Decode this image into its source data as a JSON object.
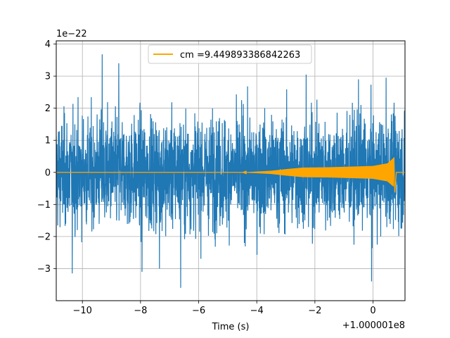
{
  "chart_data": {
    "type": "line",
    "xlabel": "Time (s)",
    "ylabel": "",
    "x_offset_label": "+1.000001e8",
    "y_scale_label": "1e−22",
    "xlim": [
      -10.9,
      1.1
    ],
    "ylim": [
      -4.0,
      4.1
    ],
    "x_ticks": [
      -10,
      -8,
      -6,
      -4,
      -2,
      0
    ],
    "x_tick_labels": [
      "−10",
      "−8",
      "−6",
      "−4",
      "−2",
      "0"
    ],
    "y_ticks": [
      -3,
      -2,
      -1,
      0,
      1,
      2,
      3,
      4
    ],
    "y_tick_labels": [
      "−3",
      "−2",
      "−1",
      "0",
      "1",
      "2",
      "3",
      "4"
    ],
    "grid": true,
    "legend_position": "upper center",
    "series": [
      {
        "name": "",
        "color": "#1f77b4",
        "description": "strain noise",
        "y_extent": [
          -3.6,
          3.7
        ],
        "envelope_spikes": [
          {
            "x": -10.35,
            "y": -3.15
          },
          {
            "x": -9.32,
            "y": 3.68
          },
          {
            "x": -8.75,
            "y": 3.4
          },
          {
            "x": -7.95,
            "y": -3.1
          },
          {
            "x": -7.35,
            "y": -3.0
          },
          {
            "x": -6.62,
            "y": -3.6
          },
          {
            "x": -2.3,
            "y": 3.05
          },
          {
            "x": -0.5,
            "y": 2.9
          },
          {
            "x": -0.05,
            "y": -3.4
          },
          {
            "x": 0.45,
            "y": 2.95
          }
        ]
      },
      {
        "name": "cm =9.449893386842263",
        "color": "#ffa500",
        "description": "chirp template",
        "points": [
          {
            "x": -10.9,
            "y": 0.0
          },
          {
            "x": -4.5,
            "y": 0.0
          },
          {
            "x": -3.5,
            "y": 0.05
          },
          {
            "x": -3.0,
            "y": 0.1
          },
          {
            "x": -2.4,
            "y": 0.15
          },
          {
            "x": -1.5,
            "y": 0.16
          },
          {
            "x": 0.0,
            "y": 0.2
          },
          {
            "x": 0.5,
            "y": 0.28
          },
          {
            "x": 0.72,
            "y": 0.45
          },
          {
            "x": 0.75,
            "y": -0.65
          },
          {
            "x": 0.8,
            "y": 0.0
          },
          {
            "x": 1.1,
            "y": 0.0
          }
        ]
      }
    ]
  }
}
